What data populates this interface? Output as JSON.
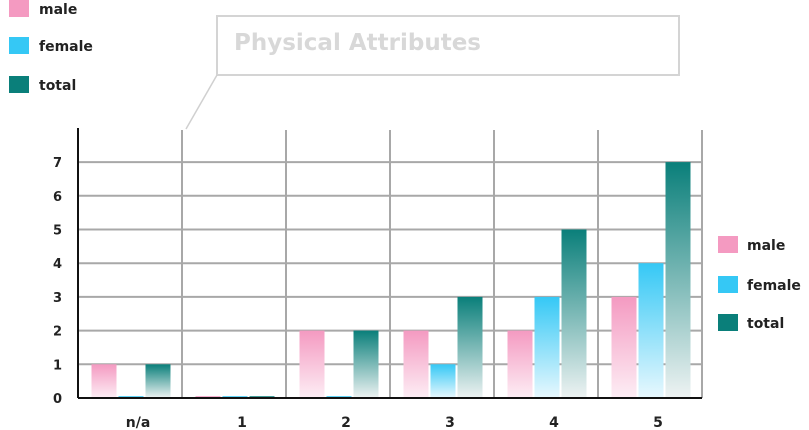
{
  "chart_data": {
    "type": "bar",
    "title": "Physical Attributes",
    "categories": [
      "n/a",
      "1",
      "2",
      "3",
      "4",
      "5"
    ],
    "series": [
      {
        "name": "male",
        "color": "#f49ac1",
        "values": [
          1,
          0,
          2,
          2,
          2,
          3
        ]
      },
      {
        "name": "female",
        "color": "#35c8f5",
        "values": [
          0,
          0,
          0,
          1,
          3,
          4
        ]
      },
      {
        "name": "total",
        "color": "#0a7f7a",
        "values": [
          1,
          0,
          2,
          3,
          5,
          7
        ]
      }
    ],
    "yticks": [
      "0",
      "1",
      "2",
      "3",
      "4",
      "5",
      "6",
      "7"
    ],
    "ylim": [
      0,
      7
    ],
    "grid": true,
    "legend_placement": [
      "top-left",
      "right"
    ]
  }
}
